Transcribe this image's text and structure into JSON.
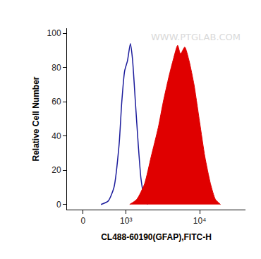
{
  "chart_data": {
    "type": "histogram_overlay",
    "x_label": "CL488-60190(GFAP),FITC-H",
    "y_label": "Relative Cell Number",
    "log": "x",
    "grid": false,
    "xlim": [
      -300,
      40000
    ],
    "xticks": [
      0,
      {
        "value": 1000,
        "label": "10³"
      },
      {
        "value": 10000,
        "label": "10⁴"
      }
    ],
    "ylim": [
      -3,
      103
    ],
    "yticks": [
      0,
      20,
      40,
      60,
      80,
      100
    ],
    "annotations": [
      "WWW.PTGLAB.COM"
    ],
    "series": [
      {
        "type": "line",
        "color": "#1c1c9c",
        "x": [
          333,
          490,
          633,
          775,
          857,
          950,
          1050,
          1160,
          1245,
          1370,
          1505,
          1645,
          1810,
          2030
        ],
        "values": [
          0,
          2,
          10,
          35,
          60,
          78,
          84,
          94,
          85,
          60,
          35,
          15,
          5,
          0
        ]
      },
      {
        "type": "area",
        "color": "#e00000",
        "x": [
          1130,
          1435,
          1840,
          2270,
          2830,
          3300,
          3935,
          4500,
          5120,
          5590,
          6365,
          7250,
          8430,
          10000,
          11700,
          13900,
          16100,
          18800
        ],
        "values": [
          0,
          3,
          12,
          28,
          45,
          60,
          75,
          85,
          93,
          88,
          92,
          84,
          70,
          48,
          28,
          12,
          3,
          0
        ]
      }
    ]
  }
}
